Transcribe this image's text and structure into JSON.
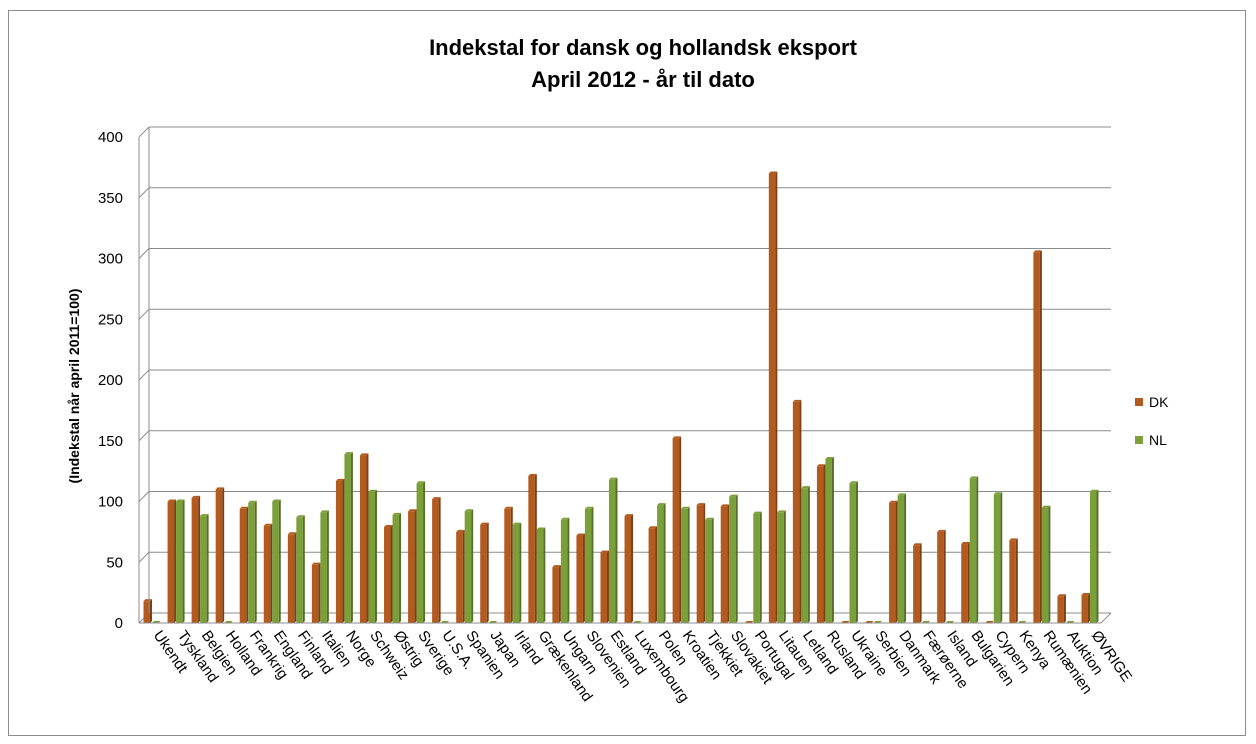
{
  "chart_data": {
    "type": "bar",
    "title": "Indekstal for dansk og hollandsk eksport",
    "subtitle": "April 2012 - år til dato",
    "xlabel": "",
    "ylabel": "(Indekstal når april 2011=100)",
    "ylim": [
      0,
      400
    ],
    "yticks": [
      0,
      50,
      100,
      150,
      200,
      250,
      300,
      350,
      400
    ],
    "grid": true,
    "legend_position": "right",
    "categories": [
      "Ukendt",
      "Tyskland",
      "Belgien",
      "Holland",
      "Frankrig",
      "England",
      "Finland",
      "Italien",
      "Norge",
      "Schweiz",
      "Østrig",
      "Sverige",
      "U.S.A.",
      "Spanien",
      "Japan",
      "Irland",
      "Grækenland",
      "Ungarn",
      "Slovenien",
      "Estland",
      "Luxembourg",
      "Polen",
      "Kroatien",
      "Tjekkiet",
      "Slovakiet",
      "Portugal",
      "Litauen",
      "Letland",
      "Rusland",
      "Ukraine",
      "Serbien",
      "Danmark",
      "Færøerne",
      "Island",
      "Bulgarien",
      "Cypern",
      "Kenya",
      "Rumænien",
      "Auktion",
      "ØVRIGE"
    ],
    "series": [
      {
        "name": "DK",
        "color": "#b35a1f",
        "values": [
          18,
          100,
          103,
          110,
          94,
          80,
          73,
          48,
          117,
          138,
          79,
          92,
          102,
          75,
          81,
          94,
          121,
          46,
          72,
          58,
          88,
          78,
          152,
          97,
          96,
          0,
          370,
          182,
          129,
          0,
          0,
          99,
          64,
          75,
          65,
          0,
          68,
          305,
          22,
          23
        ]
      },
      {
        "name": "NL",
        "color": "#7ba03a",
        "values": [
          0,
          100,
          88,
          0,
          99,
          100,
          87,
          91,
          139,
          108,
          89,
          115,
          0,
          92,
          0,
          81,
          77,
          85,
          94,
          118,
          0,
          97,
          94,
          85,
          104,
          90,
          91,
          111,
          135,
          115,
          0,
          105,
          0,
          0,
          119,
          106,
          0,
          95,
          0,
          108
        ]
      }
    ]
  }
}
